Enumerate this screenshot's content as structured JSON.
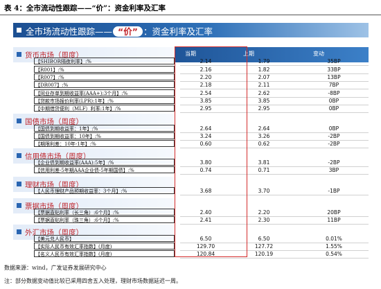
{
  "caption": "表 4：全市流动性跟踪——“价”：资金利率及汇率",
  "title": {
    "before": "全市场流动性跟踪——",
    "bubble": "“价”",
    "after": "：资金利率及汇率"
  },
  "columns": [
    "当期",
    "上期",
    "变动"
  ],
  "sections": [
    {
      "label": "货币市场（周度）",
      "rows": [
        {
          "label": "【SHIBOR隔夜利率】:%",
          "current": "2.14",
          "previous": "1.79",
          "change": "35BP"
        },
        {
          "label": "【R001】:%",
          "current": "2.16",
          "previous": "1.82",
          "change": "33BP"
        },
        {
          "label": "【R007】:%",
          "current": "2.20",
          "previous": "2.07",
          "change": "13BP"
        },
        {
          "label": "【DR007】:%",
          "current": "2.18",
          "previous": "2.11",
          "change": "7BP"
        },
        {
          "label": "【同业存单到期收益率(AAA+):3个月】:%",
          "current": "2.54",
          "previous": "2.62",
          "change": "-8BP"
        },
        {
          "label": "【贷款市场报价利率(LPR):1年】:%",
          "current": "3.85",
          "previous": "3.85",
          "change": "0BP"
        },
        {
          "label": "【中期借贷便利（MLF）利率:1年】:%",
          "current": "2.95",
          "previous": "2.95",
          "change": "0BP"
        }
      ]
    },
    {
      "label": "国债市场（周度）",
      "rows": [
        {
          "label": "【国债到期收益率：1年】:%",
          "current": "2.64",
          "previous": "2.64",
          "change": "0BP"
        },
        {
          "label": "【国债到期收益率：10年】:%",
          "current": "3.24",
          "previous": "3.26",
          "change": "-2BP"
        },
        {
          "label": "【期限利差：10年-1年】:%",
          "current": "0.60",
          "previous": "0.62",
          "change": "-2BP"
        }
      ]
    },
    {
      "label": "信用债市场（周度）",
      "rows": [
        {
          "label": "【企业债到期收益率(AAA):5年】:%",
          "current": "3.80",
          "previous": "3.81",
          "change": "-2BP"
        },
        {
          "label": "【信用利差-5年期AAA企业债-5年期国债】:%",
          "current": "0.74",
          "previous": "0.71",
          "change": "3BP"
        }
      ]
    },
    {
      "label": "理财市场（周度）",
      "rows": [
        {
          "label": "【人民币理财产品预期收益率：3个月】:%",
          "current": "3.68",
          "previous": "3.70",
          "change": "-1BP"
        }
      ]
    },
    {
      "label": "票据市场（周度）",
      "rows": [
        {
          "label": "【票据直贴利率（长三角）:6个月】:%",
          "current": "2.40",
          "previous": "2.20",
          "change": "20BP"
        },
        {
          "label": "【票据直贴利率（珠三角）:6个月】:%",
          "current": "2.41",
          "previous": "2.30",
          "change": "11BP"
        }
      ]
    },
    {
      "label": "外汇市场（周度）",
      "rows": [
        {
          "label": "【美元兑人民币】",
          "current": "6.50",
          "previous": "6.50",
          "change": "0.01%"
        },
        {
          "label": "【实际人民币有效汇率指数】(月度)",
          "current": "129.70",
          "previous": "127.72",
          "change": "1.55%"
        },
        {
          "label": "【名义人民币有效汇率指数】(月度)",
          "current": "120.84",
          "previous": "120.19",
          "change": "0.54%"
        }
      ]
    }
  ],
  "source": "数据来源：wind，广发证券发展研究中心",
  "note": "注：部分数据变动值比较已采用四舍五入处理，理财市场数据延迟一周。",
  "colors": {
    "title_bar": "#1c4f92",
    "section_label": "#c0262d",
    "highlight_box": "#d42a2a"
  }
}
